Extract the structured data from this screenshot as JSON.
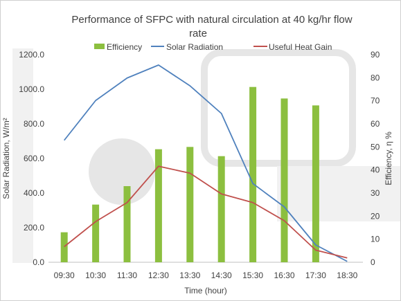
{
  "chart_data": {
    "type": "bar+line",
    "title_line1": "Performance of SFPC with natural circulation at 40 kg/hr flow",
    "title_line2": "rate",
    "xlabel": "Time (hour)",
    "ylabel_left": "Solar Radiation, W/m²",
    "ylabel_right": "Efficiency, η %",
    "categories": [
      "09:30",
      "10:30",
      "11:30",
      "12:30",
      "13:30",
      "14:30",
      "15:30",
      "16:30",
      "17:30",
      "18:30"
    ],
    "left_ticks": [
      "0.0",
      "200.0",
      "400.0",
      "600.0",
      "800.0",
      "1000.0",
      "1200.0"
    ],
    "right_ticks": [
      "0",
      "10",
      "20",
      "30",
      "40",
      "50",
      "60",
      "70",
      "80",
      "90"
    ],
    "ylim_left": [
      0,
      1200
    ],
    "ylim_right": [
      0,
      90
    ],
    "legend_position": "top",
    "series": [
      {
        "name": "Efficiency",
        "type": "bar",
        "axis": "right",
        "color": "#8cbf3f",
        "values": [
          13,
          25,
          33,
          49,
          50,
          46,
          76,
          71,
          68,
          null
        ]
      },
      {
        "name": "Solar Radiation",
        "type": "line",
        "axis": "left",
        "color": "#4f81bd",
        "values": [
          705,
          935,
          1065,
          1140,
          1020,
          860,
          455,
          320,
          100,
          5
        ]
      },
      {
        "name": "Useful Heat Gain",
        "type": "line",
        "axis": "left",
        "color": "#c0504d",
        "values": [
          90,
          235,
          345,
          555,
          515,
          395,
          345,
          240,
          70,
          25
        ]
      }
    ]
  }
}
